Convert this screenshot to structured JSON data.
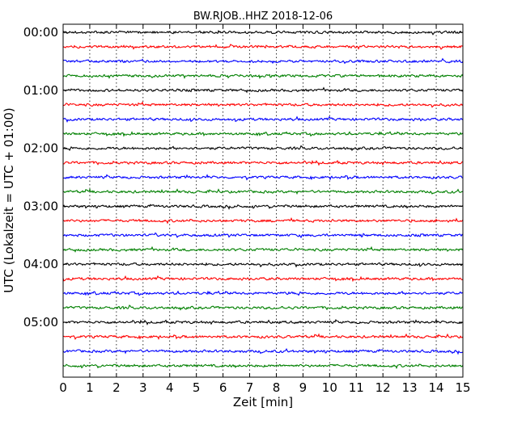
{
  "chart_data": {
    "type": "line",
    "title": "BW.RJOB..HHZ 2018-12-06",
    "xlabel": "Zeit  [min]",
    "ylabel": "UTC (Lokalzeit = UTC + 01:00)",
    "xlim": [
      0,
      15
    ],
    "x_ticks": [
      "0",
      "1",
      "2",
      "3",
      "4",
      "5",
      "6",
      "7",
      "8",
      "9",
      "10",
      "11",
      "12",
      "13",
      "14",
      "15"
    ],
    "y_tick_labels": [
      "00:00",
      "01:00",
      "02:00",
      "03:00",
      "04:00",
      "05:00"
    ],
    "minutes_per_trace": 15,
    "trace_count": 24,
    "trace_colors": [
      "#000000",
      "#ff0000",
      "#0000ff",
      "#008000"
    ],
    "vertical_grid": "dotted, every 1 min",
    "legend": "none"
  }
}
